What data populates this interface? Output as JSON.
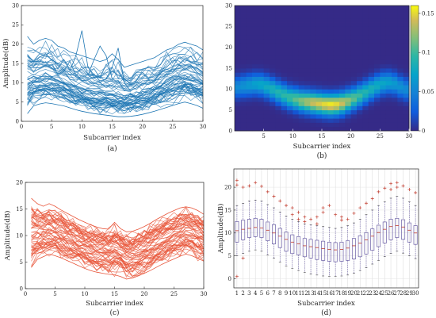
{
  "chart_data": [
    {
      "id": "a",
      "type": "line",
      "caption": "(a)",
      "xlabel": "Subcarrier index",
      "ylabel": "Amplitude(dB)",
      "xlim": [
        0,
        30
      ],
      "ylim": [
        0,
        30
      ],
      "xticks": [
        0,
        5,
        10,
        15,
        20,
        25,
        30
      ],
      "yticks": [
        0,
        5,
        10,
        15,
        20,
        25,
        30
      ],
      "grid": false,
      "color": "#1f77b4",
      "x": [
        1,
        2,
        3,
        4,
        5,
        6,
        7,
        8,
        9,
        10,
        11,
        12,
        13,
        14,
        15,
        16,
        17,
        18,
        19,
        20,
        21,
        22,
        23,
        24,
        25,
        26,
        27,
        28,
        29,
        30
      ],
      "median": [
        10.5,
        10.8,
        11,
        11.2,
        11.1,
        10.6,
        10,
        9.3,
        8.6,
        8,
        7.6,
        7.2,
        7,
        6.8,
        6.6,
        6.4,
        6.3,
        6.4,
        6.7,
        7.2,
        7.8,
        8.5,
        9.3,
        10.1,
        10.8,
        11.4,
        11.6,
        11.3,
        10.6,
        10
      ],
      "lower": [
        2,
        4,
        4.5,
        4.8,
        4.6,
        4.3,
        4,
        3.5,
        3,
        2.6,
        2.3,
        2,
        1.8,
        1.6,
        1.4,
        1.2,
        1.2,
        1.3,
        1.5,
        1.8,
        2.2,
        2.6,
        3.1,
        3.6,
        4.1,
        4.6,
        5,
        4.6,
        4.1,
        3.4
      ],
      "upper": [
        22,
        20,
        21,
        21.5,
        21,
        19.5,
        19,
        18,
        17.5,
        17,
        16.5,
        16,
        15.5,
        16,
        17.5,
        16,
        14,
        14.5,
        15,
        15.5,
        16,
        16.5,
        17.5,
        18.5,
        19,
        20,
        20.5,
        20,
        19.5,
        18.5
      ],
      "n_lines": 60,
      "outlier_lines": [
        {
          "x": [
            8,
            9,
            10,
            11,
            12
          ],
          "y": [
            13,
            17,
            23.5,
            14,
            12
          ]
        },
        {
          "x": [
            11,
            12,
            13,
            14,
            15
          ],
          "y": [
            12,
            16,
            19.5,
            17,
            11
          ]
        },
        {
          "x": [
            14,
            15,
            16,
            17,
            18
          ],
          "y": [
            11,
            14,
            19,
            10,
            8
          ]
        }
      ]
    },
    {
      "id": "b",
      "type": "heatmap",
      "caption": "(b)",
      "xlabel": "Subcarrier index",
      "xlim": [
        0,
        30
      ],
      "ylim": [
        0,
        30
      ],
      "xticks": [
        5,
        10,
        15,
        20,
        25,
        30
      ],
      "yticks": [
        0,
        5,
        10,
        15,
        20,
        25,
        30
      ],
      "colorbar_ticks": [
        0,
        0.05,
        0.1,
        0.15
      ],
      "colorbar_range": [
        0,
        0.16
      ],
      "ridge_center": [
        10.5,
        10.8,
        11,
        11.2,
        11.1,
        10.6,
        10,
        9.3,
        8.6,
        8,
        7.6,
        7.2,
        7,
        6.8,
        6.6,
        6.4,
        6.3,
        6.4,
        6.7,
        7.2,
        7.8,
        8.5,
        9.3,
        10.1,
        10.8,
        11.4,
        11.6,
        11.3,
        10.6,
        10
      ],
      "ridge_peak": [
        0.055,
        0.06,
        0.065,
        0.07,
        0.075,
        0.08,
        0.085,
        0.09,
        0.095,
        0.1,
        0.11,
        0.12,
        0.13,
        0.14,
        0.145,
        0.15,
        0.155,
        0.15,
        0.14,
        0.125,
        0.11,
        0.1,
        0.09,
        0.085,
        0.08,
        0.075,
        0.07,
        0.065,
        0.06,
        0.055
      ]
    },
    {
      "id": "c",
      "type": "line",
      "caption": "(c)",
      "xlabel": "Subcarrier index",
      "ylabel": "Amplitude(dB)",
      "xlim": [
        0,
        30
      ],
      "ylim": [
        0,
        20
      ],
      "xticks": [
        0,
        5,
        10,
        15,
        20,
        25,
        30
      ],
      "yticks": [
        0,
        5,
        10,
        15,
        20
      ],
      "grid": false,
      "color": "#e8553a",
      "x": [
        1,
        2,
        3,
        4,
        5,
        6,
        7,
        8,
        9,
        10,
        11,
        12,
        13,
        14,
        15,
        16,
        17,
        18,
        19,
        20,
        21,
        22,
        23,
        24,
        25,
        26,
        27,
        28,
        29,
        30
      ],
      "median": [
        10,
        10.3,
        10.5,
        10.7,
        10.6,
        10.2,
        9.6,
        9.1,
        8.6,
        8.1,
        7.8,
        7.5,
        7.3,
        7.2,
        7.4,
        7.2,
        6.4,
        6.5,
        6.8,
        7.2,
        7.7,
        8.3,
        8.9,
        9.5,
        10,
        10.5,
        10.8,
        10.6,
        10,
        9.6
      ],
      "lower": [
        4,
        5.5,
        6,
        6.5,
        6.2,
        5.8,
        5.3,
        4.8,
        4.3,
        3.8,
        3.4,
        3.1,
        2.9,
        2.7,
        2.6,
        2.3,
        1.8,
        2,
        2.4,
        2.9,
        3.4,
        4,
        4.6,
        5.1,
        5.6,
        6.1,
        6.5,
        6.2,
        5.7,
        5.2
      ],
      "upper": [
        17,
        16,
        15.5,
        16,
        15.5,
        14.8,
        14.2,
        13.6,
        13,
        12.5,
        12,
        11.6,
        11.3,
        11.2,
        12.5,
        11.3,
        10.7,
        10.8,
        11.2,
        11.7,
        12.3,
        13,
        13.6,
        14.2,
        14.7,
        15.2,
        15.4,
        15.2,
        14.7,
        14
      ],
      "n_lines": 60
    },
    {
      "id": "d",
      "type": "box",
      "caption": "(d)",
      "xlabel": "Subcarrier index",
      "ylabel": "Amplitude(dB)",
      "ylim": [
        -2,
        24
      ],
      "yticks": [
        0,
        5,
        10,
        15,
        20
      ],
      "categories": [
        "1",
        "2",
        "3",
        "4",
        "5",
        "6",
        "7",
        "8",
        "9",
        "10",
        "11",
        "12",
        "13",
        "14",
        "15",
        "16",
        "17",
        "18",
        "19",
        "20",
        "21",
        "22",
        "23",
        "24",
        "25",
        "26",
        "27",
        "28",
        "29",
        "30"
      ],
      "box_color": "#6b5fa6",
      "outlier_color": "#c0392b",
      "q1": [
        8,
        8.5,
        9,
        9.2,
        9,
        8.3,
        7.6,
        6.8,
        6,
        5.5,
        5.2,
        4.8,
        4.5,
        4.2,
        4,
        3.8,
        3.7,
        3.8,
        4,
        4.3,
        4.8,
        5.4,
        6.2,
        7,
        7.8,
        8.5,
        9,
        8.6,
        8,
        7.5
      ],
      "median": [
        10.5,
        10.8,
        11,
        11.2,
        11.1,
        10.6,
        10,
        9.3,
        8.6,
        8,
        7.6,
        7.2,
        7,
        6.8,
        6.6,
        6.4,
        6.3,
        6.4,
        6.7,
        7.2,
        7.8,
        8.5,
        9.3,
        10.1,
        10.8,
        11.4,
        11.6,
        11.3,
        10.6,
        10
      ],
      "q3": [
        12.5,
        12.8,
        13,
        13.2,
        13,
        12.4,
        11.8,
        11,
        10.2,
        9.6,
        9.2,
        8.8,
        8.6,
        8.4,
        8.2,
        8,
        7.9,
        8,
        8.3,
        8.8,
        9.4,
        10.1,
        10.9,
        11.7,
        12.4,
        13,
        13.2,
        12.9,
        12.2,
        11.6
      ],
      "whisker_low": [
        5,
        5.5,
        6,
        6.3,
        6,
        5.2,
        4.5,
        3.6,
        2.8,
        2.2,
        1.8,
        1.4,
        1,
        0.8,
        0.6,
        0.5,
        0.5,
        0.6,
        0.8,
        1.2,
        1.8,
        2.4,
        3.2,
        4,
        4.8,
        5.5,
        6,
        5.6,
        5,
        4.4
      ],
      "whisker_high": [
        16,
        16.5,
        17,
        17.2,
        17,
        16.2,
        15.5,
        14.6,
        13.7,
        13,
        12.5,
        12,
        11.8,
        11.6,
        11.4,
        11.2,
        11,
        11.2,
        11.6,
        12.2,
        13,
        14,
        15,
        16,
        16.8,
        17.6,
        18,
        17.6,
        16.8,
        16
      ],
      "outliers_high": [
        [
          20.5,
          21.5
        ],
        [
          20
        ],
        [
          20.3
        ],
        [
          21
        ],
        [
          20.2
        ],
        [
          19
        ],
        [
          18
        ],
        [
          17
        ],
        [
          16
        ],
        [
          15.5,
          14
        ],
        [
          14.5,
          13
        ],
        [
          13.5,
          12.5
        ],
        [
          13
        ],
        [
          13.5,
          12
        ],
        [
          15.5,
          14.5
        ],
        [
          16
        ],
        [
          14
        ],
        [
          13.5,
          12.8
        ],
        [
          13
        ],
        [
          14.3
        ],
        [
          15.5
        ],
        [
          16.5
        ],
        [
          17.5
        ],
        [
          19
        ],
        [
          19.8
        ],
        [
          20.8,
          19.5
        ],
        [
          21,
          20
        ],
        [
          20.3
        ],
        [
          19.5
        ],
        [
          18.8
        ]
      ],
      "outliers_low": [
        [
          0.5
        ],
        [
          4.5
        ],
        [],
        [],
        [],
        [],
        [],
        [],
        [],
        [],
        [],
        [],
        [],
        [],
        [],
        [],
        [],
        [],
        [],
        [],
        [],
        [],
        [],
        [],
        [],
        [],
        [],
        [],
        [],
        []
      ]
    }
  ]
}
